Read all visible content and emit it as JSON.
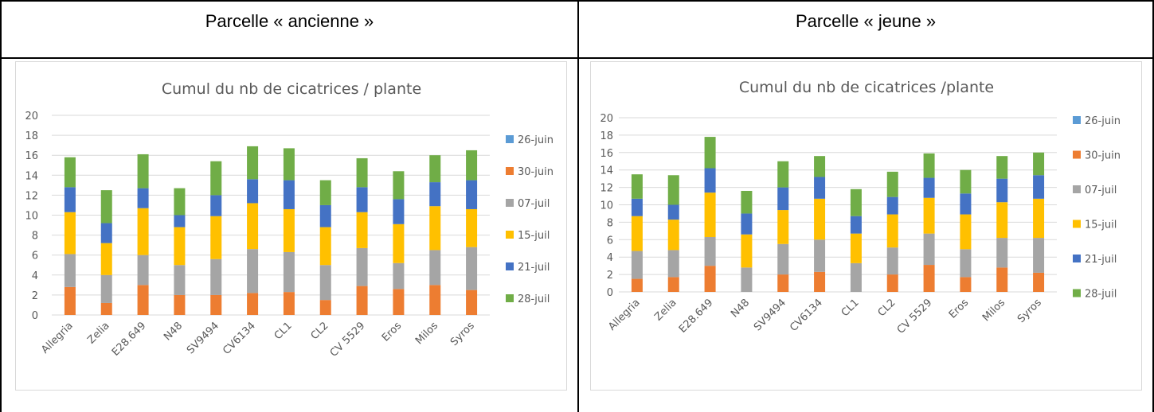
{
  "headers": {
    "left": "Parcelle « ancienne »",
    "right": "Parcelle « jeune »"
  },
  "colors": {
    "26-juin": "#5b9bd5",
    "30-juin": "#ed7d31",
    "07-juil": "#a5a5a5",
    "15-juil": "#ffc000",
    "21-juil": "#4472c4",
    "28-juil": "#70ad47",
    "grid": "#d9d9d9",
    "text": "#595959"
  },
  "chart_data": [
    {
      "type": "bar",
      "stacked": true,
      "title": "Cumul du nb de cicatrices / plante",
      "xlabel": "",
      "ylabel": "",
      "ylim": [
        0,
        20
      ],
      "yticks": [
        0,
        2,
        4,
        6,
        8,
        10,
        12,
        14,
        16,
        18,
        20
      ],
      "grid": true,
      "legend": "right",
      "categories": [
        "Allegria",
        "Zelia",
        "E28.649",
        "N48",
        "SV9494",
        "CV6134",
        "CL1",
        "CL2",
        "CV 5529",
        "Eros",
        "Milos",
        "Syros"
      ],
      "series": [
        {
          "name": "26-juin",
          "values": [
            0,
            0,
            0,
            0,
            0,
            0,
            0,
            0,
            0,
            0,
            0,
            0
          ]
        },
        {
          "name": "30-juin",
          "values": [
            2.8,
            1.2,
            3.0,
            2.0,
            2.0,
            2.2,
            2.3,
            1.5,
            2.9,
            2.6,
            3.0,
            2.5
          ]
        },
        {
          "name": "07-juil",
          "values": [
            3.3,
            2.8,
            3.0,
            3.0,
            3.6,
            4.4,
            4.0,
            3.5,
            3.8,
            2.6,
            3.5,
            4.3
          ]
        },
        {
          "name": "15-juil",
          "values": [
            4.2,
            3.2,
            4.7,
            3.8,
            4.3,
            4.6,
            4.3,
            3.8,
            3.6,
            3.9,
            4.4,
            3.8
          ]
        },
        {
          "name": "21-juil",
          "values": [
            2.5,
            2.0,
            2.0,
            1.2,
            2.1,
            2.4,
            2.9,
            2.2,
            2.5,
            2.5,
            2.4,
            2.9
          ]
        },
        {
          "name": "28-juil",
          "values": [
            3.0,
            3.3,
            3.4,
            2.7,
            3.4,
            3.3,
            3.2,
            2.5,
            2.9,
            2.8,
            2.7,
            3.0
          ]
        }
      ]
    },
    {
      "type": "bar",
      "stacked": true,
      "title": "Cumul du nb de cicatrices /plante",
      "xlabel": "",
      "ylabel": "",
      "ylim": [
        0,
        20
      ],
      "yticks": [
        0,
        2,
        4,
        6,
        8,
        10,
        12,
        14,
        16,
        18,
        20
      ],
      "grid": true,
      "legend": "right",
      "categories": [
        "Allegria",
        "Zelia",
        "E28.649",
        "N48",
        "SV9494",
        "CV6134",
        "CL1",
        "CL2",
        "CV 5529",
        "Eros",
        "Milos",
        "Syros"
      ],
      "series": [
        {
          "name": "26-juin",
          "values": [
            0,
            0,
            0,
            0,
            0,
            0,
            0,
            0,
            0,
            0,
            0,
            0
          ]
        },
        {
          "name": "30-juin",
          "values": [
            1.5,
            1.7,
            3.0,
            0,
            2.0,
            2.3,
            0,
            2.0,
            3.1,
            1.7,
            2.8,
            2.2
          ]
        },
        {
          "name": "07-juil",
          "values": [
            3.2,
            3.1,
            3.3,
            2.8,
            3.5,
            3.7,
            3.3,
            3.1,
            3.6,
            3.2,
            3.4,
            4.0
          ]
        },
        {
          "name": "15-juil",
          "values": [
            4.0,
            3.5,
            5.1,
            3.8,
            3.9,
            4.7,
            3.4,
            3.8,
            4.1,
            4.0,
            4.1,
            4.5
          ]
        },
        {
          "name": "21-juil",
          "values": [
            2.0,
            1.7,
            2.8,
            2.4,
            2.6,
            2.5,
            2.0,
            2.0,
            2.3,
            2.4,
            2.7,
            2.7
          ]
        },
        {
          "name": "28-juil",
          "values": [
            2.8,
            3.4,
            3.6,
            2.6,
            3.0,
            2.4,
            3.1,
            2.9,
            2.8,
            2.7,
            2.6,
            2.6
          ]
        }
      ]
    }
  ]
}
